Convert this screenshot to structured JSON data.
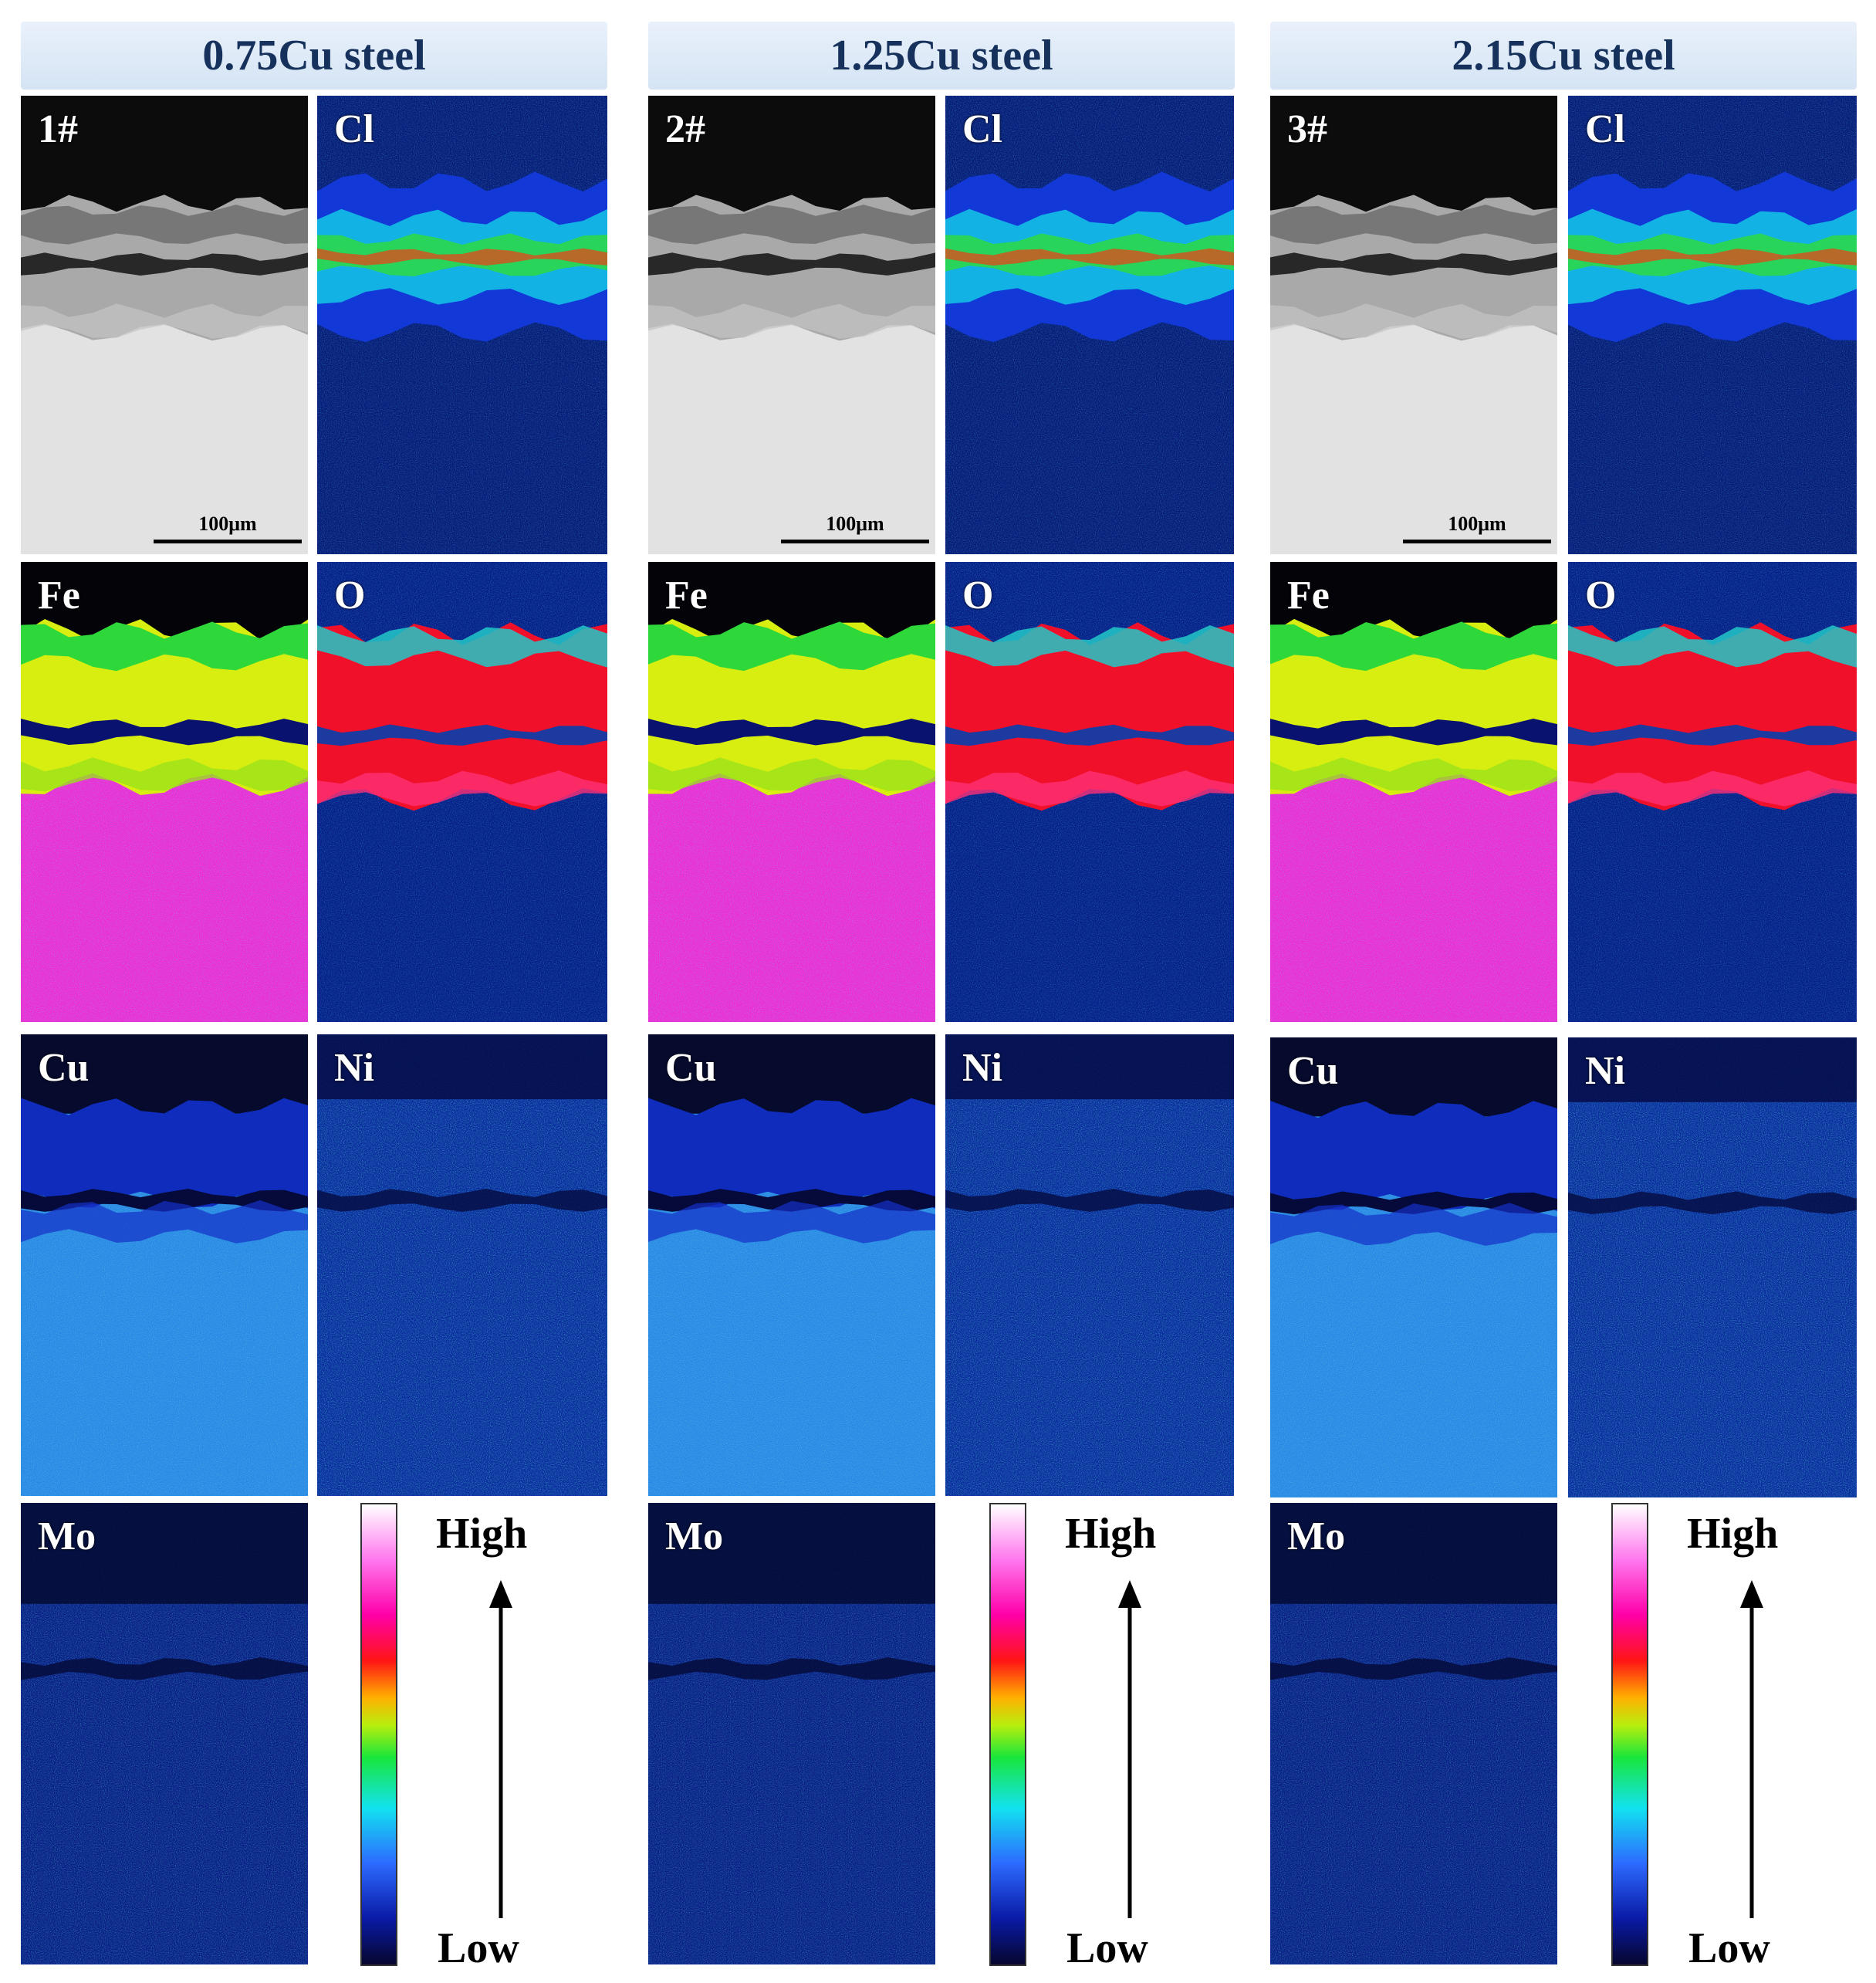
{
  "columns": [
    {
      "title": "0.75Cu steel",
      "sample": "1#"
    },
    {
      "title": "1.25Cu steel",
      "sample": "2#"
    },
    {
      "title": "2.15Cu steel",
      "sample": "3#"
    }
  ],
  "elements": [
    "Cl",
    "Fe",
    "O",
    "Cu",
    "Ni",
    "Mo"
  ],
  "scale_bar": "100μm",
  "legend": {
    "high": "High",
    "low": "Low"
  }
}
